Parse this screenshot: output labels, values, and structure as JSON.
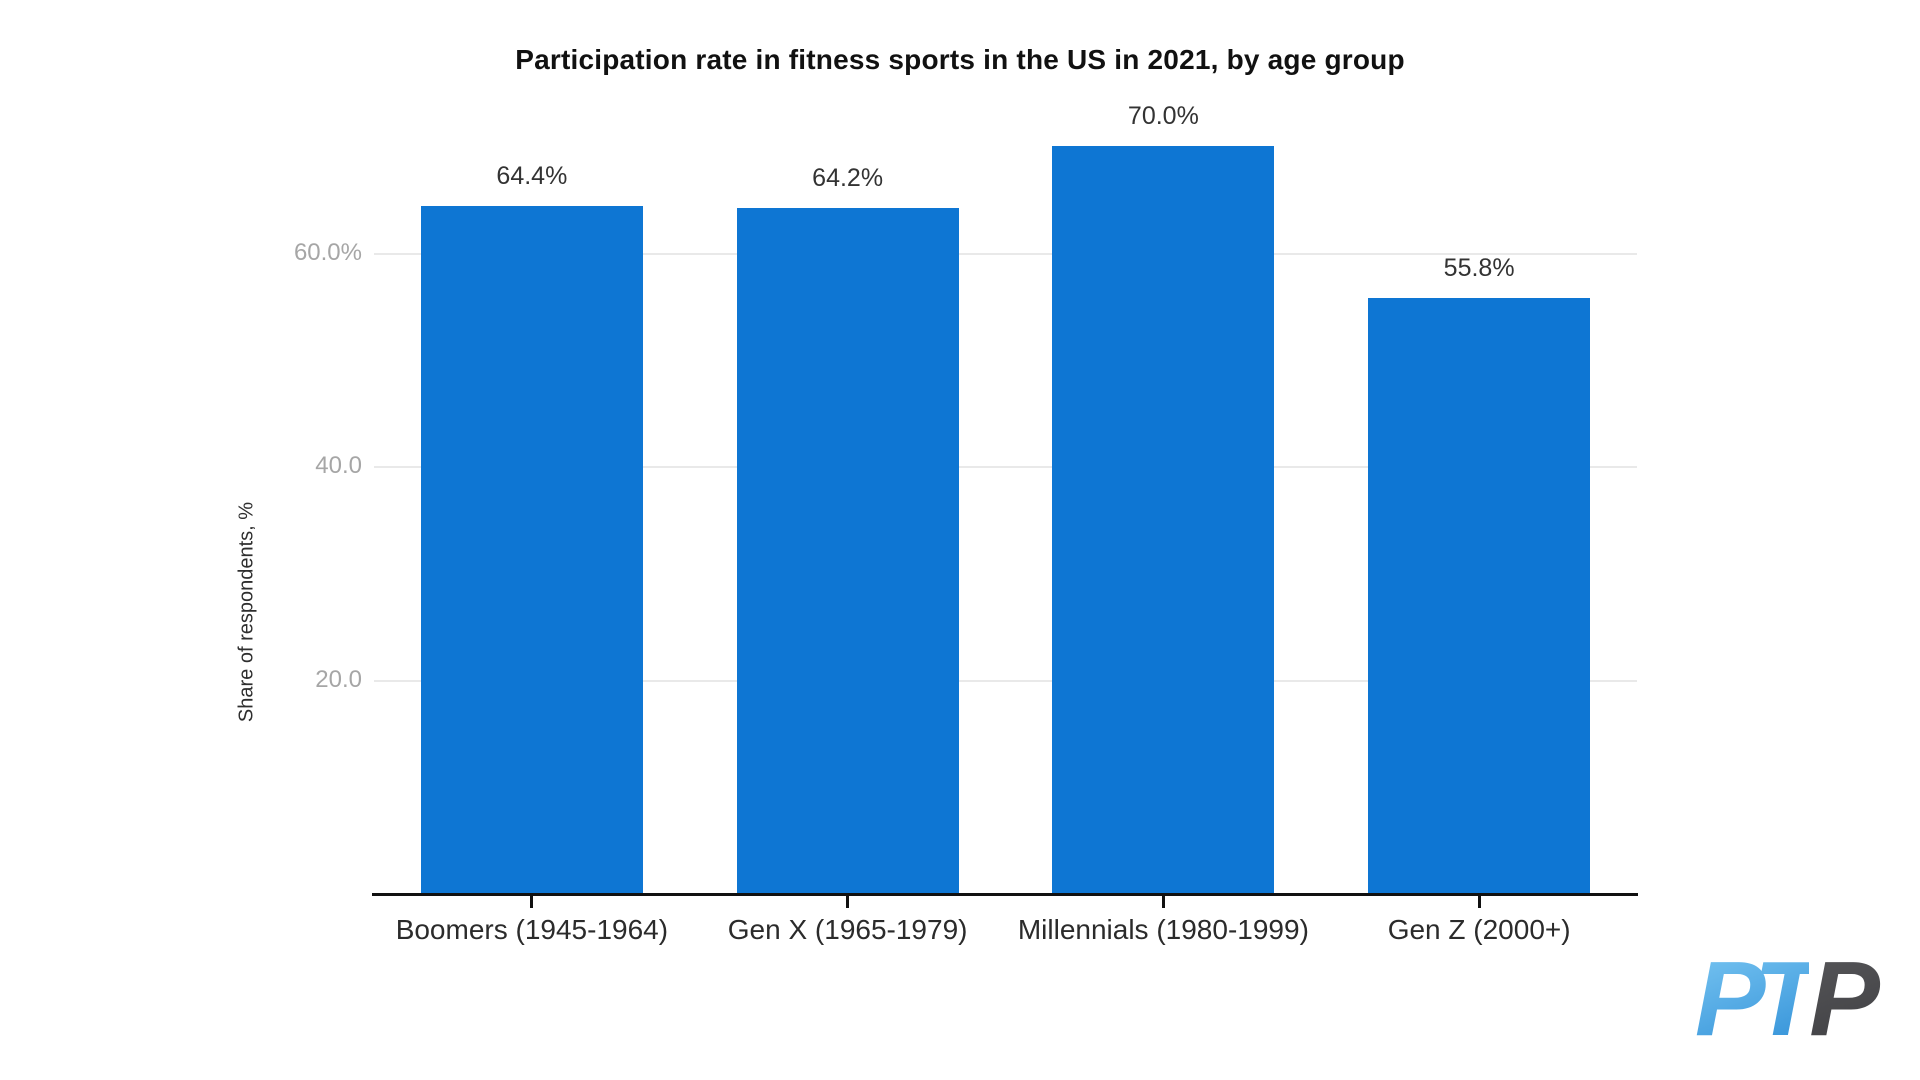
{
  "page": {
    "background": "#ffffff"
  },
  "chart_data": {
    "type": "bar",
    "title": "Participation rate in fitness sports in the US in 2021, by age group",
    "categories": [
      "Boomers (1945-1964)",
      "Gen X (1965-1979)",
      "Millennials (1980-1999)",
      "Gen Z (2000+)"
    ],
    "values": [
      64.4,
      64.2,
      70.0,
      55.8
    ],
    "value_labels": [
      "64.4%",
      "64.2%",
      "70.0%",
      "55.8%"
    ],
    "xlabel": "",
    "ylabel": "Share of respondents, %",
    "yticks": [
      {
        "value": 20,
        "label": "20.0"
      },
      {
        "value": 40,
        "label": "40.0"
      },
      {
        "value": 60,
        "label": "60.0%"
      }
    ],
    "ylim": [
      0,
      76.4
    ],
    "grid": "horizontal",
    "legend": "none",
    "bar_color": "#0e76d3",
    "gridline_color": "#e9e9e9",
    "axis_color": "#111111",
    "tick_label_color": "#a6a6a6",
    "value_label_color": "#333333",
    "category_label_color": "#2b2b2b"
  },
  "watermark": {
    "name": "PTP logo",
    "text_blue": "PT",
    "text_dark": "P",
    "blue_gradient_from": "#7cc8f3",
    "blue_gradient_to": "#2d8dd6",
    "dark_gradient_from": "#58585b",
    "dark_gradient_to": "#3d3d40"
  }
}
